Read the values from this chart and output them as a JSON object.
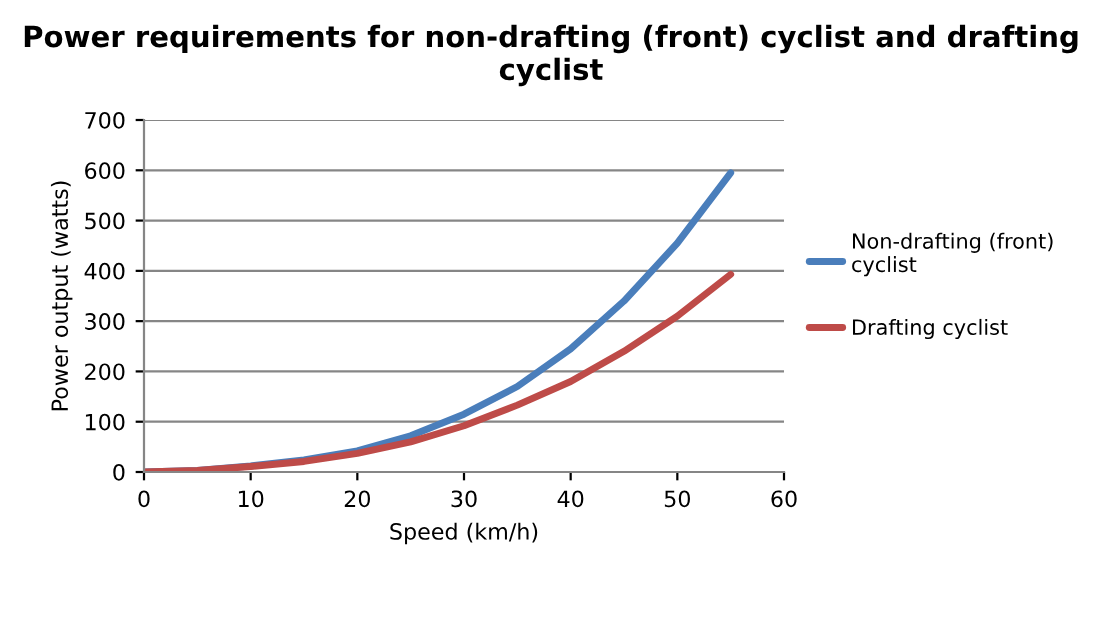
{
  "chart_data": {
    "type": "line",
    "title": "Power requirements for non-drafting (front) cyclist and drafting cyclist",
    "xlabel": "Speed (km/h)",
    "ylabel": "Power output (watts)",
    "x": [
      0,
      5,
      10,
      15,
      20,
      25,
      30,
      35,
      40,
      45,
      50,
      55
    ],
    "series": [
      {
        "name": "Non-drafting (front) cyclist",
        "color": "#4a7ebb",
        "values": [
          0,
          3,
          12,
          24,
          42,
          72,
          115,
          170,
          245,
          340,
          455,
          595
        ]
      },
      {
        "name": "Drafting cyclist",
        "color": "#be4b48",
        "values": [
          0,
          3,
          11,
          21,
          37,
          60,
          92,
          133,
          180,
          240,
          310,
          393
        ]
      }
    ],
    "xlim": [
      0,
      60
    ],
    "xticks": [
      0,
      10,
      20,
      30,
      40,
      50,
      60
    ],
    "ylim": [
      0,
      700
    ],
    "yticks": [
      0,
      100,
      200,
      300,
      400,
      500,
      600,
      700
    ],
    "grid": "y",
    "legend": "right",
    "marker": "none",
    "line_style": "solid"
  }
}
